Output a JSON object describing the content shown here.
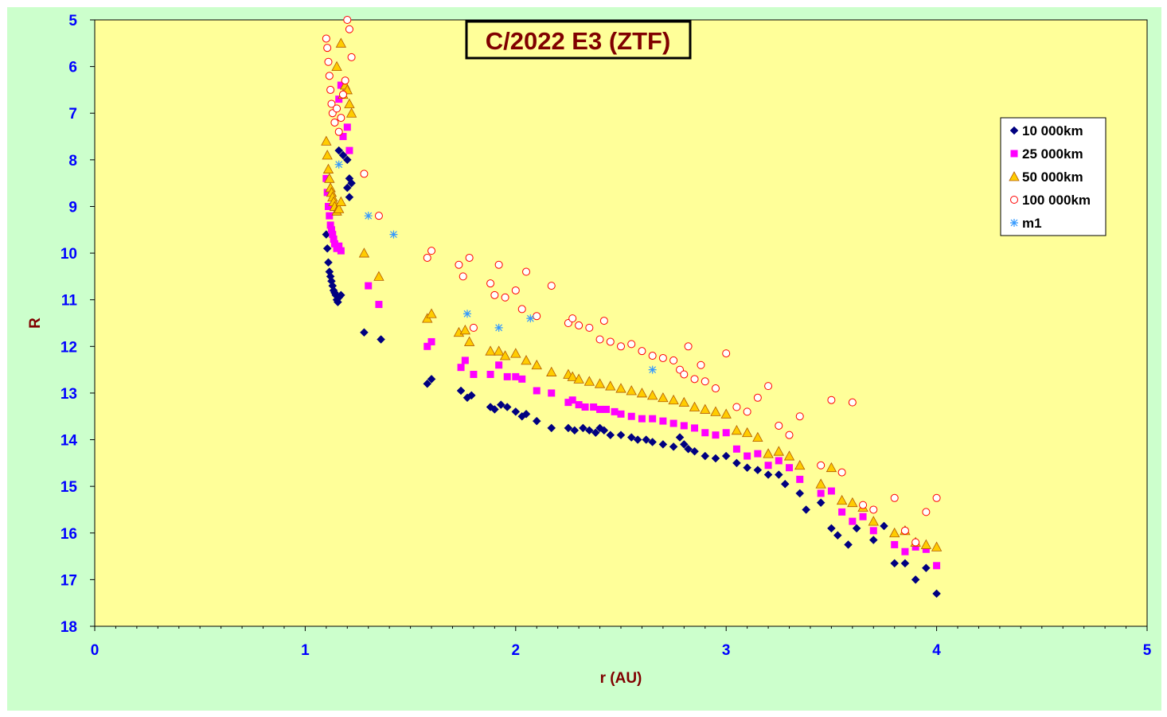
{
  "chart_data": {
    "type": "scatter",
    "title": "C/2022 E3 (ZTF)",
    "xlabel": "r (AU)",
    "ylabel": "R",
    "xlim": [
      0,
      5
    ],
    "ylim": [
      5,
      18
    ],
    "y_inverted": true,
    "x_ticks": [
      "0",
      "1",
      "2",
      "3",
      "4",
      "5"
    ],
    "y_ticks": [
      "5",
      "6",
      "7",
      "8",
      "9",
      "10",
      "11",
      "12",
      "13",
      "14",
      "15",
      "16",
      "17",
      "18"
    ],
    "grid": false,
    "legend_position": "top-right",
    "colors": {
      "plot_background": "#ffff99",
      "frame_background": "#ccffcc",
      "tick_labels": "#0000ff",
      "axis_titles": "#800000"
    },
    "series": [
      {
        "name": "10 000km",
        "marker": "diamond",
        "color": "#000080",
        "x": [
          1.1,
          1.105,
          1.11,
          1.115,
          1.12,
          1.125,
          1.13,
          1.135,
          1.14,
          1.145,
          1.15,
          1.155,
          1.16,
          1.17,
          1.16,
          1.18,
          1.2,
          1.21,
          1.2,
          1.21,
          1.22,
          1.28,
          1.36,
          1.58,
          1.6,
          1.74,
          1.77,
          1.79,
          1.88,
          1.9,
          1.93,
          1.96,
          2.0,
          2.03,
          2.05,
          2.1,
          2.17,
          2.25,
          2.28,
          2.32,
          2.35,
          2.38,
          2.4,
          2.42,
          2.45,
          2.5,
          2.55,
          2.58,
          2.62,
          2.65,
          2.7,
          2.75,
          2.78,
          2.8,
          2.82,
          2.85,
          2.9,
          2.95,
          3.0,
          3.05,
          3.1,
          3.15,
          3.2,
          3.25,
          3.28,
          3.35,
          3.38,
          3.45,
          3.5,
          3.53,
          3.58,
          3.62,
          3.7,
          3.75,
          3.8,
          3.85,
          3.9,
          3.95,
          4.0
        ],
        "y": [
          9.6,
          9.9,
          10.2,
          10.4,
          10.5,
          10.6,
          10.7,
          10.8,
          10.85,
          10.9,
          11.0,
          11.05,
          10.95,
          10.9,
          7.8,
          7.9,
          8.0,
          8.4,
          8.6,
          8.8,
          8.5,
          11.7,
          11.85,
          12.8,
          12.7,
          12.95,
          13.1,
          13.05,
          13.3,
          13.35,
          13.25,
          13.3,
          13.4,
          13.5,
          13.45,
          13.6,
          13.75,
          13.75,
          13.8,
          13.75,
          13.8,
          13.85,
          13.75,
          13.8,
          13.9,
          13.9,
          13.95,
          14.0,
          14.0,
          14.05,
          14.1,
          14.15,
          13.95,
          14.1,
          14.2,
          14.25,
          14.35,
          14.4,
          14.35,
          14.5,
          14.6,
          14.65,
          14.75,
          14.75,
          14.95,
          15.15,
          15.5,
          15.35,
          15.9,
          16.05,
          16.25,
          15.9,
          16.15,
          15.85,
          16.65,
          16.65,
          17.0,
          16.75,
          17.3
        ]
      },
      {
        "name": "25 000km",
        "marker": "square",
        "color": "#ff00ff",
        "x": [
          1.1,
          1.105,
          1.11,
          1.115,
          1.12,
          1.125,
          1.13,
          1.135,
          1.14,
          1.15,
          1.16,
          1.17,
          1.18,
          1.16,
          1.17,
          1.2,
          1.21,
          1.3,
          1.35,
          1.58,
          1.6,
          1.74,
          1.76,
          1.8,
          1.88,
          1.92,
          1.96,
          2.0,
          2.03,
          2.1,
          2.17,
          2.25,
          2.27,
          2.3,
          2.33,
          2.37,
          2.4,
          2.43,
          2.47,
          2.5,
          2.55,
          2.6,
          2.65,
          2.7,
          2.75,
          2.8,
          2.85,
          2.9,
          2.95,
          3.0,
          3.05,
          3.1,
          3.15,
          3.2,
          3.25,
          3.3,
          3.35,
          3.45,
          3.5,
          3.55,
          3.6,
          3.65,
          3.7,
          3.8,
          3.85,
          3.9,
          3.95,
          4.0
        ],
        "y": [
          8.4,
          8.7,
          9.0,
          9.2,
          9.4,
          9.5,
          9.6,
          9.7,
          9.8,
          9.9,
          9.85,
          9.95,
          7.5,
          6.7,
          6.4,
          7.3,
          7.8,
          10.7,
          11.1,
          12.0,
          11.9,
          12.45,
          12.3,
          12.6,
          12.6,
          12.4,
          12.65,
          12.65,
          12.7,
          12.95,
          13.0,
          13.2,
          13.15,
          13.25,
          13.3,
          13.3,
          13.35,
          13.35,
          13.4,
          13.45,
          13.5,
          13.55,
          13.55,
          13.6,
          13.65,
          13.7,
          13.75,
          13.85,
          13.9,
          13.85,
          14.2,
          14.35,
          14.3,
          14.55,
          14.45,
          14.6,
          14.85,
          15.15,
          15.1,
          15.55,
          15.75,
          15.65,
          15.95,
          16.25,
          16.4,
          16.3,
          16.35,
          16.7
        ]
      },
      {
        "name": "50 000km",
        "marker": "triangle",
        "color": "#ffcc00",
        "x": [
          1.1,
          1.105,
          1.11,
          1.115,
          1.12,
          1.125,
          1.13,
          1.135,
          1.14,
          1.15,
          1.16,
          1.17,
          1.18,
          1.19,
          1.2,
          1.21,
          1.17,
          1.15,
          1.22,
          1.28,
          1.35,
          1.58,
          1.6,
          1.73,
          1.76,
          1.78,
          1.88,
          1.92,
          1.95,
          2.0,
          2.05,
          2.1,
          2.17,
          2.25,
          2.27,
          2.3,
          2.35,
          2.4,
          2.45,
          2.5,
          2.55,
          2.6,
          2.65,
          2.7,
          2.75,
          2.8,
          2.85,
          2.9,
          2.95,
          3.0,
          3.05,
          3.1,
          3.15,
          3.2,
          3.25,
          3.3,
          3.35,
          3.45,
          3.5,
          3.55,
          3.6,
          3.65,
          3.7,
          3.8,
          3.85,
          3.9,
          3.95,
          4.0
        ],
        "y": [
          7.6,
          7.9,
          8.2,
          8.4,
          8.6,
          8.7,
          8.8,
          8.9,
          9.0,
          9.1,
          9.05,
          8.9,
          6.6,
          6.4,
          6.5,
          6.8,
          5.5,
          6.0,
          7.0,
          10.0,
          10.5,
          11.4,
          11.3,
          11.7,
          11.65,
          11.9,
          12.1,
          12.1,
          12.2,
          12.15,
          12.3,
          12.4,
          12.55,
          12.6,
          12.65,
          12.7,
          12.75,
          12.8,
          12.85,
          12.9,
          12.95,
          13.0,
          13.05,
          13.1,
          13.15,
          13.2,
          13.3,
          13.35,
          13.4,
          13.45,
          13.8,
          13.85,
          13.95,
          14.3,
          14.25,
          14.35,
          14.55,
          14.95,
          14.6,
          15.3,
          15.35,
          15.45,
          15.75,
          16.0,
          15.95,
          16.2,
          16.25,
          16.3
        ]
      },
      {
        "name": "100 000km",
        "marker": "open-circle",
        "color": "#ff0000",
        "x": [
          1.1,
          1.105,
          1.11,
          1.115,
          1.12,
          1.125,
          1.13,
          1.14,
          1.15,
          1.16,
          1.17,
          1.18,
          1.19,
          1.2,
          1.21,
          1.22,
          1.28,
          1.35,
          1.58,
          1.6,
          1.73,
          1.75,
          1.78,
          1.8,
          1.88,
          1.9,
          1.92,
          1.95,
          2.0,
          2.03,
          2.05,
          2.1,
          2.17,
          2.25,
          2.27,
          2.3,
          2.35,
          2.4,
          2.42,
          2.45,
          2.5,
          2.55,
          2.6,
          2.65,
          2.7,
          2.75,
          2.78,
          2.8,
          2.82,
          2.85,
          2.88,
          2.9,
          2.95,
          3.0,
          3.05,
          3.1,
          3.15,
          3.2,
          3.25,
          3.3,
          3.35,
          3.45,
          3.5,
          3.55,
          3.6,
          3.65,
          3.7,
          3.8,
          3.85,
          3.9,
          3.95,
          4.0
        ],
        "y": [
          5.4,
          5.6,
          5.9,
          6.2,
          6.5,
          6.8,
          7.0,
          7.2,
          6.9,
          7.4,
          7.1,
          6.6,
          6.3,
          5.0,
          5.2,
          5.8,
          8.3,
          9.2,
          10.1,
          9.95,
          10.25,
          10.5,
          10.1,
          11.6,
          10.65,
          10.9,
          10.25,
          10.95,
          10.8,
          11.2,
          10.4,
          11.35,
          10.7,
          11.5,
          11.4,
          11.55,
          11.6,
          11.85,
          11.45,
          11.9,
          12.0,
          11.95,
          12.1,
          12.2,
          12.25,
          12.3,
          12.5,
          12.6,
          12.0,
          12.7,
          12.4,
          12.75,
          12.9,
          12.15,
          13.3,
          13.4,
          13.1,
          12.85,
          13.7,
          13.9,
          13.5,
          14.55,
          13.15,
          14.7,
          13.2,
          15.4,
          15.5,
          15.25,
          15.95,
          16.2,
          15.55,
          15.25
        ]
      },
      {
        "name": "m1",
        "marker": "asterisk",
        "color": "#3399ff",
        "x": [
          1.16,
          1.3,
          1.42,
          1.77,
          1.92,
          2.07,
          2.65
        ],
        "y": [
          8.1,
          9.2,
          9.6,
          11.3,
          11.6,
          11.4,
          12.5
        ]
      }
    ]
  }
}
